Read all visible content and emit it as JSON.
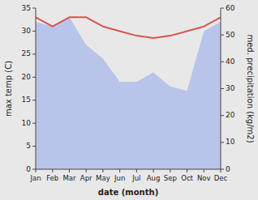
{
  "chart_data": {
    "type": "line",
    "xlabel": "date (month)",
    "ylabel": "max temp (C)",
    "y2label": "med. precipitation (kg/m2)",
    "categories": [
      "Jan",
      "Feb",
      "Mar",
      "Apr",
      "May",
      "Jun",
      "Jul",
      "Aug",
      "Sep",
      "Oct",
      "Nov",
      "Dec"
    ],
    "series": [
      {
        "type": "area",
        "color": "#b8c4ea",
        "values": [
          32,
          31,
          33,
          27,
          24,
          19,
          19,
          21,
          18,
          17,
          30,
          32
        ]
      },
      {
        "type": "line",
        "color": "#d9534f",
        "values": [
          33,
          31,
          33,
          33,
          31,
          30,
          29,
          28.5,
          29,
          30,
          31,
          33
        ]
      }
    ],
    "ylim": [
      0,
      35
    ],
    "yticks": [
      0,
      5,
      10,
      15,
      20,
      25,
      30,
      35
    ],
    "y2lim": [
      0,
      60
    ],
    "y2ticks": [
      0,
      10,
      20,
      30,
      40,
      50,
      60
    ],
    "grid": false
  }
}
